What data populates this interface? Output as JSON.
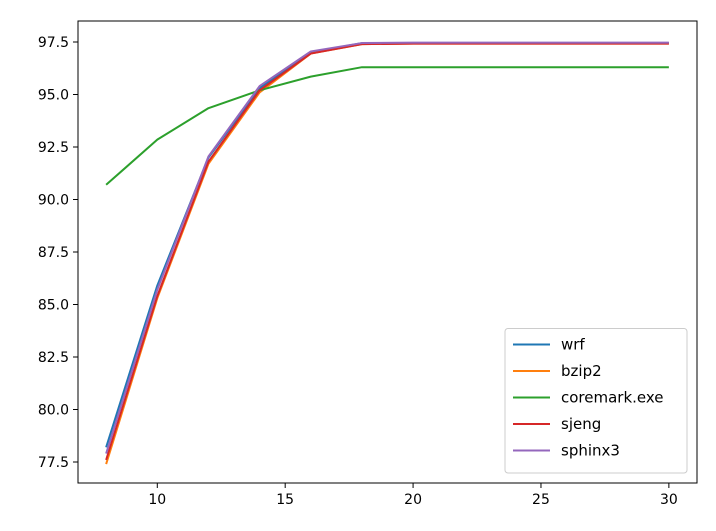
{
  "chart_data": {
    "type": "line",
    "title": "",
    "xlabel": "",
    "ylabel": "",
    "xlim": [
      6.9,
      31.1
    ],
    "ylim": [
      76.5,
      98.5
    ],
    "xticks": [
      10,
      15,
      20,
      25,
      30
    ],
    "xtick_labels": [
      "10",
      "15",
      "20",
      "25",
      "30"
    ],
    "yticks": [
      77.5,
      80.0,
      82.5,
      85.0,
      87.5,
      90.0,
      92.5,
      95.0,
      97.5
    ],
    "ytick_labels": [
      "77.5",
      "80.0",
      "82.5",
      "85.0",
      "87.5",
      "90.0",
      "92.5",
      "95.0",
      "97.5"
    ],
    "grid": false,
    "legend_position": "lower-right",
    "x": [
      8,
      10,
      12,
      14,
      16,
      18,
      20,
      22,
      24,
      26,
      28,
      30
    ],
    "series": [
      {
        "name": "wrf",
        "color": "#1f77b4",
        "values": [
          78.2,
          85.9,
          92.0,
          95.3,
          97.0,
          97.45,
          97.45,
          97.45,
          97.45,
          97.45,
          97.45,
          97.45
        ]
      },
      {
        "name": "bzip2",
        "color": "#ff7f0e",
        "values": [
          77.4,
          85.3,
          91.7,
          95.1,
          96.95,
          97.4,
          97.42,
          97.42,
          97.42,
          97.42,
          97.42,
          97.42
        ]
      },
      {
        "name": "coremark.exe",
        "color": "#2ca02c",
        "values": [
          90.7,
          92.85,
          94.35,
          95.2,
          95.85,
          96.3,
          96.3,
          96.3,
          96.3,
          96.3,
          96.3,
          96.3
        ]
      },
      {
        "name": "sjeng",
        "color": "#d62728",
        "values": [
          77.6,
          85.4,
          91.8,
          95.2,
          96.95,
          97.4,
          97.42,
          97.42,
          97.42,
          97.42,
          97.42,
          97.42
        ]
      },
      {
        "name": "sphinx3",
        "color": "#9467bd",
        "values": [
          77.9,
          85.7,
          92.05,
          95.4,
          97.05,
          97.45,
          97.47,
          97.47,
          97.47,
          97.47,
          97.47,
          97.47
        ]
      }
    ]
  }
}
